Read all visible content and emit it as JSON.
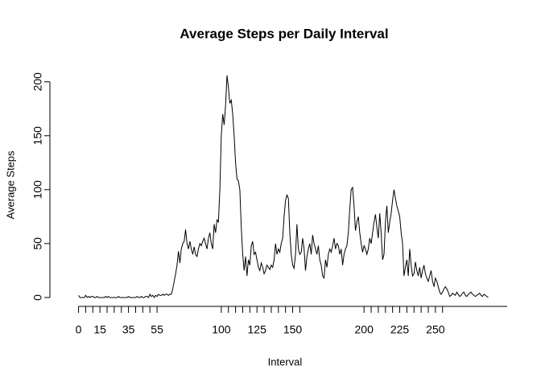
{
  "chart_data": {
    "type": "line",
    "title": "Average Steps per Daily Interval",
    "x_label": "Interval",
    "y_label": "Average Steps",
    "color": "#000000",
    "values": [
      2,
      0,
      0,
      0,
      0,
      2,
      0,
      1,
      0,
      1,
      1,
      0,
      0,
      1,
      0,
      0,
      0,
      0,
      0,
      1,
      0,
      1,
      0,
      0,
      0,
      0,
      0,
      0,
      1,
      0,
      0,
      0,
      0,
      0,
      0,
      1,
      0,
      0,
      0,
      0,
      0,
      1,
      0,
      0,
      1,
      0,
      0,
      1,
      1,
      0,
      3,
      1,
      2,
      0,
      2,
      1,
      3,
      2,
      2,
      3,
      2,
      3,
      3,
      2,
      3,
      3,
      8,
      15,
      22,
      30,
      43,
      32,
      45,
      50,
      52,
      63,
      50,
      45,
      52,
      45,
      40,
      47,
      40,
      38,
      45,
      50,
      48,
      52,
      55,
      50,
      45,
      55,
      60,
      50,
      45,
      68,
      60,
      72,
      70,
      100,
      150,
      170,
      160,
      178,
      206,
      195,
      180,
      183,
      170,
      150,
      125,
      110,
      108,
      100,
      65,
      40,
      25,
      38,
      20,
      35,
      30,
      48,
      52,
      40,
      42,
      35,
      28,
      25,
      32,
      28,
      22,
      25,
      30,
      28,
      26,
      30,
      28,
      35,
      50,
      40,
      45,
      42,
      50,
      55,
      75,
      90,
      95,
      92,
      60,
      40,
      30,
      27,
      40,
      68,
      45,
      40,
      42,
      55,
      45,
      25,
      38,
      45,
      50,
      40,
      58,
      50,
      45,
      40,
      48,
      35,
      30,
      20,
      18,
      35,
      28,
      40,
      45,
      42,
      48,
      55,
      45,
      50,
      48,
      40,
      45,
      30,
      40,
      45,
      48,
      60,
      82,
      100,
      102,
      85,
      62,
      70,
      75,
      60,
      50,
      42,
      48,
      45,
      40,
      45,
      55,
      50,
      60,
      70,
      77,
      65,
      55,
      78,
      60,
      35,
      40,
      70,
      85,
      60,
      70,
      78,
      90,
      100,
      92,
      85,
      80,
      75,
      60,
      50,
      20,
      28,
      35,
      20,
      45,
      30,
      20,
      22,
      33,
      25,
      20,
      28,
      18,
      25,
      30,
      22,
      18,
      15,
      20,
      25,
      15,
      10,
      18,
      15,
      10,
      5,
      3,
      5,
      8,
      10,
      8,
      5,
      1,
      2,
      4,
      3,
      2,
      5,
      3,
      1,
      2,
      4,
      5,
      2,
      1,
      3,
      4,
      5,
      3,
      2,
      1,
      2,
      3,
      4,
      2,
      1,
      3,
      2,
      1,
      0
    ],
    "xlim": [
      -11.48,
      298.48
    ],
    "ylim": [
      -8.24,
      214.4
    ],
    "yticks": [
      0,
      50,
      100,
      150,
      200
    ],
    "xticks": [
      0,
      {
        "value": 5,
        "label": null
      },
      {
        "value": 10,
        "label": null
      },
      15,
      {
        "value": 20,
        "label": null
      },
      {
        "value": 25,
        "label": null
      },
      {
        "value": 30,
        "label": null
      },
      35,
      {
        "value": 40,
        "label": null
      },
      {
        "value": 45,
        "label": null
      },
      {
        "value": 50,
        "label": null
      },
      55,
      100,
      {
        "value": 105,
        "label": null
      },
      {
        "value": 110,
        "label": null
      },
      {
        "value": 115,
        "label": null
      },
      {
        "value": 120,
        "label": null
      },
      125,
      {
        "value": 130,
        "label": null
      },
      {
        "value": 135,
        "label": null
      },
      {
        "value": 140,
        "label": null
      },
      {
        "value": 145,
        "label": null
      },
      150,
      {
        "value": 155,
        "label": null
      },
      200,
      {
        "value": 205,
        "label": null
      },
      {
        "value": 210,
        "label": null
      },
      {
        "value": 215,
        "label": null
      },
      {
        "value": 220,
        "label": null
      },
      225,
      {
        "value": 230,
        "label": null
      },
      {
        "value": 235,
        "label": null
      },
      {
        "value": 240,
        "label": null
      },
      {
        "value": 245,
        "label": null
      },
      250,
      {
        "value": 255,
        "label": null
      }
    ]
  }
}
